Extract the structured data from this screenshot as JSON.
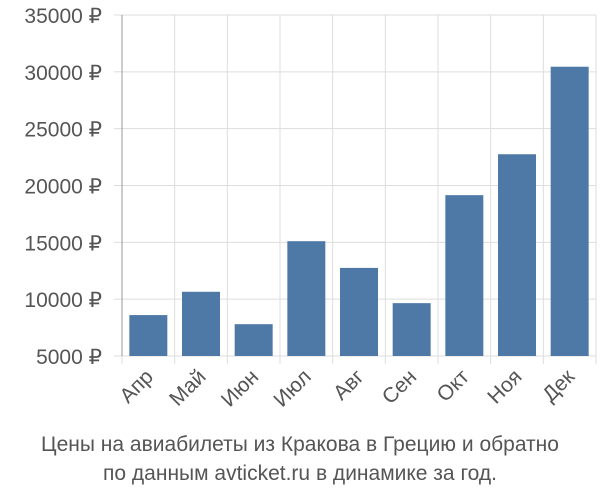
{
  "chart_data": {
    "type": "bar",
    "categories": [
      "Апр",
      "Май",
      "Июн",
      "Июл",
      "Авг",
      "Сен",
      "Окт",
      "Ноя",
      "Дек"
    ],
    "values": [
      8600,
      10650,
      7800,
      15100,
      12750,
      9650,
      19150,
      22750,
      30450
    ],
    "ylim": [
      5000,
      35000
    ],
    "yticks": [
      5000,
      10000,
      15000,
      20000,
      25000,
      30000,
      35000
    ],
    "ytick_suffix": " ₽",
    "bar_color": "#4e79a7",
    "grid": true,
    "xlabel": "",
    "ylabel": ""
  },
  "caption": {
    "line1": "Цены на авиабилеты из Кракова в Грецию и обратно",
    "line2": "по данным avticket.ru в динамике за год."
  }
}
